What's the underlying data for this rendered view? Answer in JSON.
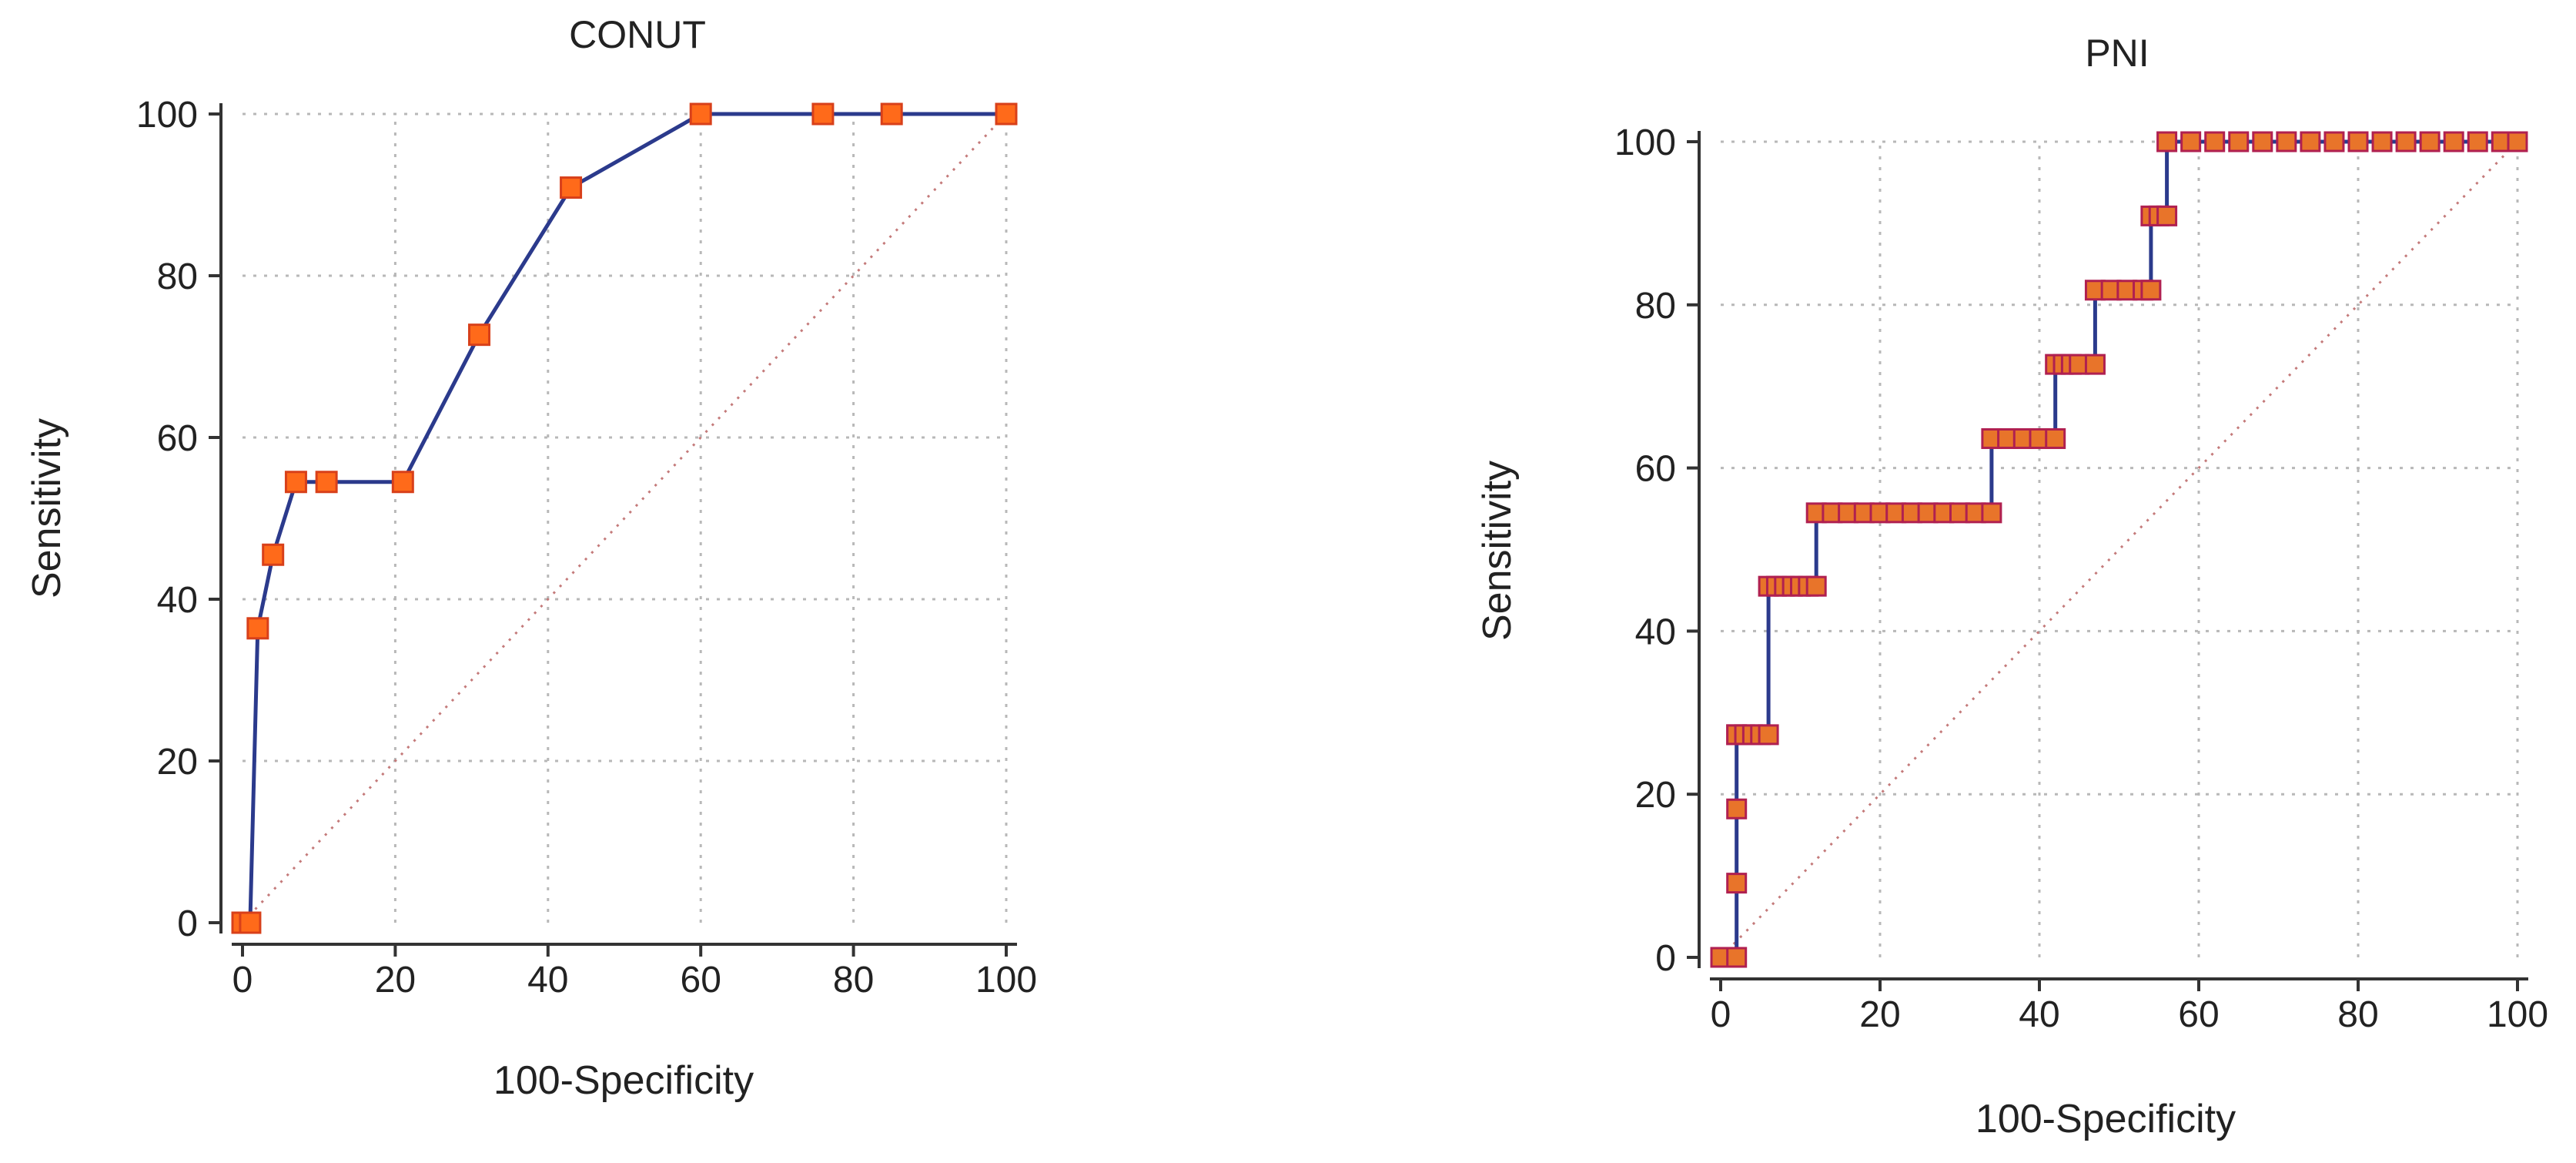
{
  "chart_data": [
    {
      "type": "line",
      "subtype": "roc-step",
      "title": "CONUT",
      "xlabel": "100-Specificity",
      "ylabel": "Sensitivity",
      "xlim": [
        0,
        100
      ],
      "ylim": [
        0,
        100
      ],
      "xticks": [
        "0",
        "20",
        "40",
        "60",
        "80",
        "100"
      ],
      "yticks": [
        "0",
        "20",
        "40",
        "60",
        "80",
        "100"
      ],
      "grid": true,
      "diagonal_reference": true,
      "colors": {
        "line": "#2b3a8c",
        "marker": "#ff6a1a"
      },
      "series": [
        {
          "x": [
            0,
            1,
            2,
            4,
            7,
            11,
            21,
            31,
            43,
            60,
            76,
            85,
            100
          ],
          "y": [
            0,
            0,
            36.4,
            45.5,
            54.5,
            54.5,
            54.5,
            72.7,
            90.9,
            100,
            100,
            100,
            100
          ]
        }
      ]
    },
    {
      "type": "line",
      "subtype": "roc-step",
      "title": "PNI",
      "xlabel": "100-Specificity",
      "ylabel": "Sensitivity",
      "xlim": [
        0,
        100
      ],
      "ylim": [
        0,
        100
      ],
      "xticks": [
        "0",
        "20",
        "40",
        "60",
        "80",
        "100"
      ],
      "yticks": [
        "0",
        "20",
        "40",
        "60",
        "80",
        "100"
      ],
      "grid": true,
      "diagonal_reference": true,
      "colors": {
        "line": "#2b3a8c",
        "marker": "#e8742a"
      },
      "series": [
        {
          "x": [
            0,
            2,
            2,
            2,
            2,
            2,
            3,
            4,
            5,
            6,
            6,
            7,
            8,
            9,
            10,
            11,
            12,
            12,
            14,
            16,
            18,
            20,
            22,
            24,
            26,
            28,
            30,
            32,
            34,
            34,
            36,
            38,
            40,
            42,
            42,
            43,
            44,
            45,
            47,
            47,
            49,
            51,
            53,
            54,
            54,
            55,
            56,
            56,
            59,
            62,
            65,
            68,
            71,
            74,
            77,
            80,
            83,
            86,
            89,
            92,
            95,
            98,
            100
          ],
          "y": [
            0,
            0,
            9.1,
            18.2,
            27.3,
            27.3,
            27.3,
            27.3,
            27.3,
            27.3,
            45.5,
            45.5,
            45.5,
            45.5,
            45.5,
            45.5,
            45.5,
            54.5,
            54.5,
            54.5,
            54.5,
            54.5,
            54.5,
            54.5,
            54.5,
            54.5,
            54.5,
            54.5,
            54.5,
            63.6,
            63.6,
            63.6,
            63.6,
            63.6,
            72.7,
            72.7,
            72.7,
            72.7,
            72.7,
            81.8,
            81.8,
            81.8,
            81.8,
            81.8,
            90.9,
            90.9,
            90.9,
            100,
            100,
            100,
            100,
            100,
            100,
            100,
            100,
            100,
            100,
            100,
            100,
            100,
            100,
            100,
            100
          ]
        }
      ]
    }
  ]
}
